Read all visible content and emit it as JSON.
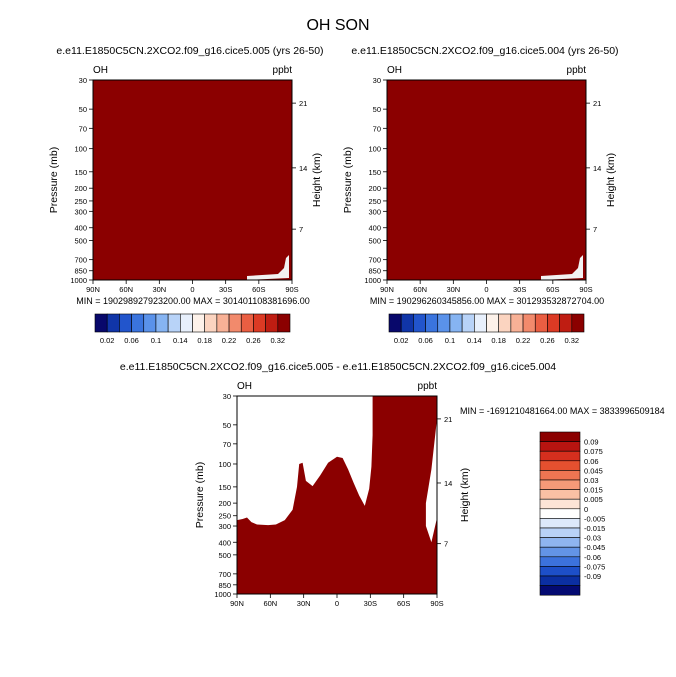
{
  "title": "OH SON",
  "panels": [
    {
      "subtitle": "e.e11.E1850C5CN.2XCO2.f09_g16.cice5.005 (yrs 26-50)",
      "left_label": "OH",
      "right_label": "ppbt",
      "ylabel": "Pressure (mb)",
      "ylabel_right": "Height (km)",
      "stats": "MIN = 190298927923200.00   MAX = 301401108381696.00"
    },
    {
      "subtitle": "e.e11.E1850C5CN.2XCO2.f09_g16.cice5.004 (yrs 26-50)",
      "left_label": "OH",
      "right_label": "ppbt",
      "ylabel": "Pressure (mb)",
      "ylabel_right": "Height (km)",
      "stats": "MIN = 190296260345856.00   MAX = 301293532872704.00"
    },
    {
      "subtitle": "e.e11.E1850C5CN.2XCO2.f09_g16.cice5.005 - e.e11.E1850C5CN.2XCO2.f09_g16.cice5.004",
      "left_label": "OH",
      "right_label": "ppbt",
      "ylabel": "Pressure (mb)",
      "ylabel_right": "Height (km)",
      "stats": "MIN = -1691210481664.00   MAX = 3833996509184"
    }
  ],
  "chart_data": [
    {
      "type": "heatmap",
      "title": "e.e11.E1850C5CN.2XCO2.f09_g16.cice5.005 (yrs 26-50)",
      "xlabel": "",
      "ylabel": "Pressure (mb)",
      "ylabel_right": "Height (km)",
      "x_ticks": [
        "90N",
        "60N",
        "30N",
        "0",
        "30S",
        "60S",
        "90S"
      ],
      "y_ticks": [
        "30",
        "50",
        "70",
        "100",
        "150",
        "200",
        "250",
        "300",
        "400",
        "500",
        "700",
        "850",
        "1000"
      ],
      "y_ticks_right": [
        "21",
        "14",
        "7"
      ],
      "yscale": "log (reversed)",
      "colorbar_labels": [
        "0.02",
        "0.06",
        "0.1",
        "0.14",
        "0.18",
        "0.22",
        "0.26",
        "0.32"
      ],
      "colorbar_colors": [
        "#08086b",
        "#1035a8",
        "#2255cc",
        "#3a74de",
        "#5a92ea",
        "#86b4f2",
        "#b8d3f8",
        "#e8f0fc",
        "#fdf2ea",
        "#fbd4c0",
        "#f8b196",
        "#f28a6c",
        "#ea5e42",
        "#dc3a24",
        "#bf1d12",
        "#8b0000"
      ],
      "fill": "uniform dark red (values above 0.32 over whole domain)",
      "min": 190298927923200.0,
      "max": 301401108381696.0
    },
    {
      "type": "heatmap",
      "title": "e.e11.E1850C5CN.2XCO2.f09_g16.cice5.004 (yrs 26-50)",
      "xlabel": "",
      "ylabel": "Pressure (mb)",
      "ylabel_right": "Height (km)",
      "x_ticks": [
        "90N",
        "60N",
        "30N",
        "0",
        "30S",
        "60S",
        "90S"
      ],
      "y_ticks": [
        "30",
        "50",
        "70",
        "100",
        "150",
        "200",
        "250",
        "300",
        "400",
        "500",
        "700",
        "850",
        "1000"
      ],
      "y_ticks_right": [
        "21",
        "14",
        "7"
      ],
      "yscale": "log (reversed)",
      "colorbar_labels": [
        "0.02",
        "0.06",
        "0.1",
        "0.14",
        "0.18",
        "0.22",
        "0.26",
        "0.32"
      ],
      "colorbar_colors": [
        "#08086b",
        "#1035a8",
        "#2255cc",
        "#3a74de",
        "#5a92ea",
        "#86b4f2",
        "#b8d3f8",
        "#e8f0fc",
        "#fdf2ea",
        "#fbd4c0",
        "#f8b196",
        "#f28a6c",
        "#ea5e42",
        "#dc3a24",
        "#bf1d12",
        "#8b0000"
      ],
      "fill": "uniform dark red (values above 0.32 over whole domain)",
      "min": 190296260345856.0,
      "max": 301293532872704.0
    },
    {
      "type": "heatmap",
      "title": "e.e11.E1850C5CN.2XCO2.f09_g16.cice5.005 - e.e11.E1850C5CN.2XCO2.f09_g16.cice5.004",
      "xlabel": "",
      "ylabel": "Pressure (mb)",
      "ylabel_right": "Height (km)",
      "x_ticks": [
        "90N",
        "60N",
        "30N",
        "0",
        "30S",
        "60S",
        "90S"
      ],
      "y_ticks": [
        "30",
        "50",
        "70",
        "100",
        "150",
        "200",
        "250",
        "300",
        "400",
        "500",
        "700",
        "850",
        "1000"
      ],
      "y_ticks_right": [
        "21",
        "14",
        "7"
      ],
      "yscale": "log (reversed)",
      "colorbar_labels": [
        "0.09",
        "0.075",
        "0.06",
        "0.045",
        "0.03",
        "0.015",
        "0.005",
        "0",
        "-0.005",
        "-0.015",
        "-0.03",
        "-0.045",
        "-0.06",
        "-0.075",
        "-0.09"
      ],
      "colorbar_colors": [
        "#8b0000",
        "#b81410",
        "#d52f1e",
        "#e5502f",
        "#ef7552",
        "#f59a78",
        "#fac0a4",
        "#fde4d6",
        "#ffffff",
        "#dde9fb",
        "#b9d2f7",
        "#8fb5f0",
        "#6394e6",
        "#3c72dc",
        "#1d4fc8",
        "#0b2fa2",
        "#040a72"
      ],
      "fill": "dark red where difference > 0.09 (troposphere below ~250mb at high latitudes, tropics up to ~100mb, southern stratosphere 30S-90S above 30mb); white elsewhere",
      "min": -1691210481664.0,
      "max": 3833996509184
    }
  ],
  "colors": {
    "fill": "#8b0000",
    "frame": "#000000"
  }
}
